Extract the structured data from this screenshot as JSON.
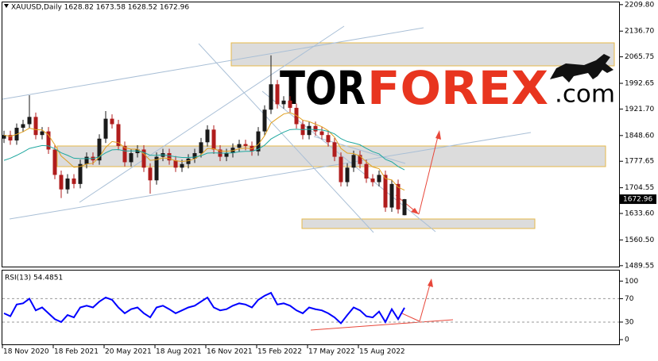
{
  "watermark": {
    "left": "TOR",
    "middle": "FOREX",
    "right": ".com"
  },
  "chart_data": [
    {
      "type": "candlestick",
      "title": "XAUUSD,Daily  1628.82 1673.58 1628.52 1672.96",
      "ylim": [
        1487,
        2216
      ],
      "yticks": [
        {
          "value": 2209.8,
          "label": "2209.80"
        },
        {
          "value": 2136.7,
          "label": "2136.70"
        },
        2065.75,
        1992.65,
        {
          "value": 1921.7,
          "label": "1921.70"
        },
        {
          "value": 1848.6,
          "label": "1848.60"
        },
        1777.65,
        1704.55,
        {
          "value": 1633.6,
          "label": "1633.60"
        },
        {
          "value": 1560.5,
          "label": "1560.50"
        },
        1489.55
      ],
      "up_color": "#1a1a1a",
      "down_color": "#b01c1c",
      "ohlc": [
        [
          1840,
          1862,
          1828,
          1850
        ],
        [
          1850,
          1862,
          1823,
          1835
        ],
        [
          1835,
          1882,
          1823,
          1870
        ],
        [
          1870,
          1892,
          1858,
          1880
        ],
        [
          1880,
          1960,
          1868,
          1900
        ],
        [
          1900,
          1912,
          1838,
          1850
        ],
        [
          1850,
          1872,
          1838,
          1860
        ],
        [
          1860,
          1872,
          1798,
          1810
        ],
        [
          1810,
          1822,
          1728,
          1740
        ],
        [
          1740,
          1752,
          1676,
          1700
        ],
        [
          1700,
          1742,
          1688,
          1730
        ],
        [
          1730,
          1742,
          1703,
          1715
        ],
        [
          1715,
          1782,
          1703,
          1770
        ],
        [
          1770,
          1802,
          1758,
          1790
        ],
        [
          1790,
          1802,
          1768,
          1780
        ],
        [
          1780,
          1852,
          1768,
          1840
        ],
        [
          1840,
          1916,
          1828,
          1895
        ],
        [
          1895,
          1907,
          1868,
          1880
        ],
        [
          1880,
          1892,
          1808,
          1820
        ],
        [
          1820,
          1832,
          1763,
          1775
        ],
        [
          1775,
          1812,
          1763,
          1800
        ],
        [
          1800,
          1822,
          1788,
          1810
        ],
        [
          1810,
          1822,
          1748,
          1760
        ],
        [
          1760,
          1772,
          1688,
          1725
        ],
        [
          1725,
          1802,
          1713,
          1790
        ],
        [
          1790,
          1812,
          1778,
          1800
        ],
        [
          1800,
          1812,
          1768,
          1780
        ],
        [
          1780,
          1792,
          1748,
          1760
        ],
        [
          1760,
          1782,
          1748,
          1770
        ],
        [
          1770,
          1797,
          1758,
          1785
        ],
        [
          1785,
          1812,
          1773,
          1800
        ],
        [
          1800,
          1842,
          1788,
          1830
        ],
        [
          1830,
          1877,
          1818,
          1865
        ],
        [
          1865,
          1877,
          1798,
          1810
        ],
        [
          1810,
          1822,
          1778,
          1790
        ],
        [
          1790,
          1812,
          1778,
          1800
        ],
        [
          1800,
          1827,
          1788,
          1815
        ],
        [
          1815,
          1837,
          1803,
          1825
        ],
        [
          1825,
          1837,
          1808,
          1820
        ],
        [
          1820,
          1832,
          1793,
          1805
        ],
        [
          1805,
          1872,
          1793,
          1860
        ],
        [
          1860,
          1932,
          1848,
          1920
        ],
        [
          1920,
          2070,
          1908,
          1990
        ],
        [
          1990,
          2002,
          1923,
          1935
        ],
        [
          1935,
          1957,
          1923,
          1945
        ],
        [
          1945,
          1957,
          1913,
          1925
        ],
        [
          1925,
          1937,
          1868,
          1880
        ],
        [
          1880,
          1892,
          1838,
          1850
        ],
        [
          1850,
          1887,
          1838,
          1875
        ],
        [
          1875,
          1887,
          1848,
          1860
        ],
        [
          1860,
          1872,
          1838,
          1850
        ],
        [
          1850,
          1862,
          1818,
          1830
        ],
        [
          1830,
          1842,
          1778,
          1790
        ],
        [
          1790,
          1802,
          1708,
          1720
        ],
        [
          1720,
          1772,
          1708,
          1760
        ],
        [
          1760,
          1807,
          1748,
          1795
        ],
        [
          1795,
          1807,
          1758,
          1770
        ],
        [
          1770,
          1782,
          1718,
          1730
        ],
        [
          1730,
          1742,
          1708,
          1720
        ],
        [
          1720,
          1752,
          1708,
          1740
        ],
        [
          1740,
          1752,
          1638,
          1650
        ],
        [
          1650,
          1727,
          1638,
          1715
        ],
        [
          1715,
          1727,
          1633,
          1645
        ],
        [
          1628.82,
          1673.58,
          1628.52,
          1672.96
        ]
      ],
      "series": [
        {
          "color": "#e0a020",
          "values": [
            1850,
            1846,
            1852,
            1859,
            1869,
            1865,
            1864,
            1850,
            1823,
            1792,
            1777,
            1761,
            1763,
            1770,
            1772,
            1789,
            1816,
            1832,
            1829,
            1815,
            1811,
            1811,
            1798,
            1780,
            1782,
            1787,
            1785,
            1779,
            1777,
            1779,
            1784,
            1796,
            1813,
            1812,
            1806,
            1805,
            1807,
            1812,
            1814,
            1812,
            1824,
            1848,
            1883,
            1896,
            1908,
            1912,
            1904,
            1891,
            1887,
            1880,
            1873,
            1862,
            1844,
            1813,
            1800,
            1799,
            1792,
            1776,
            1762,
            1757,
            1730,
            1726,
            1706,
            1698
          ]
        },
        {
          "color": "#20a8a0",
          "values": [
            1780,
            1786,
            1794,
            1803,
            1813,
            1817,
            1821,
            1820,
            1812,
            1801,
            1794,
            1786,
            1785,
            1785,
            1785,
            1790,
            1801,
            1809,
            1810,
            1806,
            1806,
            1806,
            1802,
            1794,
            1794,
            1795,
            1793,
            1790,
            1788,
            1788,
            1789,
            1793,
            1800,
            1801,
            1800,
            1800,
            1801,
            1804,
            1805,
            1805,
            1811,
            1822,
            1839,
            1849,
            1858,
            1865,
            1866,
            1865,
            1866,
            1865,
            1864,
            1860,
            1853,
            1840,
            1832,
            1828,
            1823,
            1813,
            1804,
            1798,
            1783,
            1776,
            1763,
            1754
          ]
        }
      ]
    },
    {
      "type": "line",
      "title": "RSI(13) 54.4851",
      "color": "#0000ff",
      "ylim": [
        -8,
        118
      ],
      "yticks": [
        0,
        30,
        70,
        100
      ],
      "levels": [
        30,
        70
      ],
      "values": [
        45,
        40,
        60,
        62,
        70,
        50,
        55,
        45,
        35,
        30,
        42,
        38,
        55,
        58,
        55,
        65,
        72,
        68,
        55,
        45,
        52,
        55,
        45,
        38,
        55,
        58,
        52,
        45,
        50,
        55,
        58,
        65,
        72,
        55,
        50,
        52,
        58,
        62,
        60,
        55,
        68,
        75,
        80,
        60,
        62,
        58,
        50,
        45,
        55,
        52,
        50,
        45,
        38,
        28,
        42,
        55,
        50,
        40,
        38,
        48,
        30,
        52,
        35,
        54.4851
      ],
      "xtick_labels": [
        "18 Nov 2020",
        "18 Feb 2021",
        "20 May 2021",
        "18 Aug 2021",
        "16 Nov 2021",
        "15 Feb 2022",
        "17 May 2022",
        "15 Aug 2022"
      ]
    }
  ]
}
